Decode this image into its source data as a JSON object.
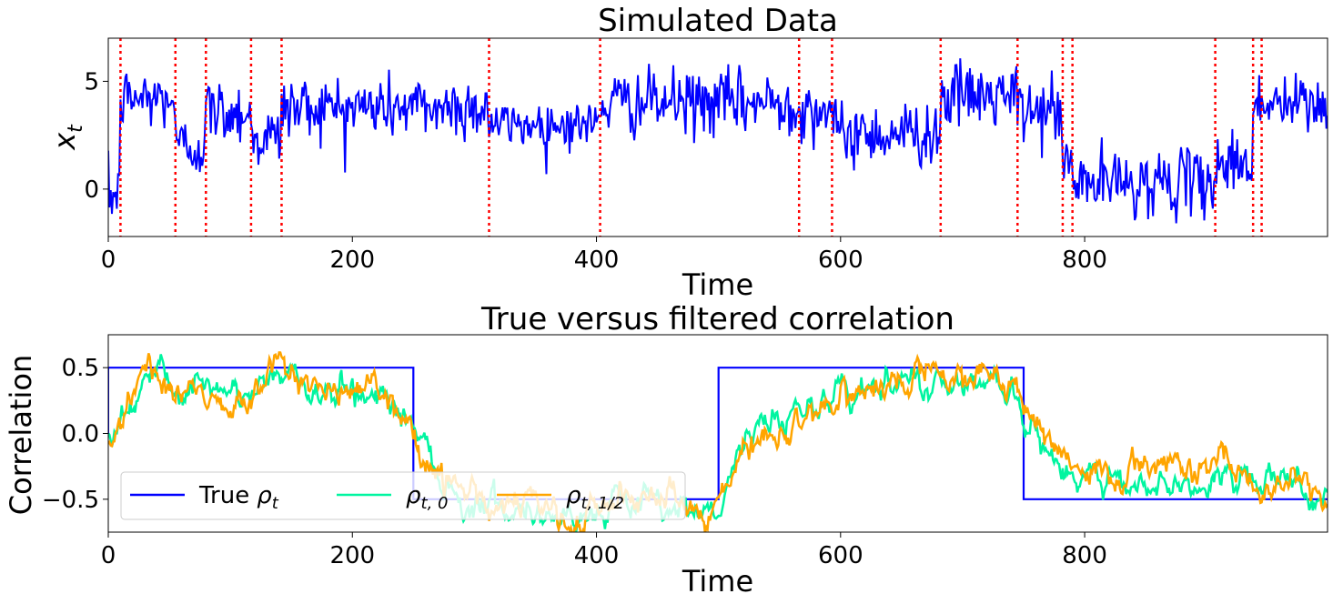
{
  "chart_data": [
    {
      "type": "line",
      "title": "Simulated Data",
      "xlabel": "Time",
      "ylabel": "x_t",
      "xlim": [
        0,
        999
      ],
      "ylim": [
        -2.2,
        7.0
      ],
      "xticks": [
        0,
        200,
        400,
        600,
        800
      ],
      "yticks": [
        0,
        5
      ],
      "series": [
        {
          "name": "x_t",
          "color": "#0000ff",
          "regime_means": [
            {
              "start": 0,
              "end": 10,
              "mean": -0.3
            },
            {
              "start": 10,
              "end": 55,
              "mean": 4.2
            },
            {
              "start": 55,
              "end": 80,
              "mean": 2.0
            },
            {
              "start": 80,
              "end": 117,
              "mean": 3.6
            },
            {
              "start": 117,
              "end": 142,
              "mean": 2.4
            },
            {
              "start": 142,
              "end": 312,
              "mean": 3.8
            },
            {
              "start": 312,
              "end": 403,
              "mean": 3.0
            },
            {
              "start": 403,
              "end": 566,
              "mean": 4.0
            },
            {
              "start": 566,
              "end": 593,
              "mean": 3.7
            },
            {
              "start": 593,
              "end": 682,
              "mean": 2.6
            },
            {
              "start": 682,
              "end": 745,
              "mean": 4.3
            },
            {
              "start": 745,
              "end": 782,
              "mean": 3.6
            },
            {
              "start": 782,
              "end": 790,
              "mean": 1.1
            },
            {
              "start": 790,
              "end": 907,
              "mean": 0.3
            },
            {
              "start": 907,
              "end": 938,
              "mean": 1.2
            },
            {
              "start": 938,
              "end": 945,
              "mean": 3.9
            },
            {
              "start": 945,
              "end": 999,
              "mean": 3.9
            }
          ]
        }
      ],
      "changepoints": [
        10,
        55,
        80,
        117,
        142,
        312,
        403,
        566,
        593,
        682,
        745,
        782,
        790,
        907,
        938,
        945
      ],
      "changepoint_color": "#ff0000"
    },
    {
      "type": "line",
      "title": "True versus filtered correlation",
      "xlabel": "Time",
      "ylabel": "Correlation",
      "xlim": [
        0,
        999
      ],
      "ylim": [
        -0.75,
        0.75
      ],
      "xticks": [
        0,
        200,
        400,
        600,
        800
      ],
      "yticks": [
        0.5,
        0.0,
        -0.5
      ],
      "ytick_labels": [
        "0.5",
        "0.0",
        "−0.5"
      ],
      "series": [
        {
          "name": "True ρt",
          "color": "#0000ff",
          "segments": [
            {
              "start": 0,
              "end": 250,
              "value": 0.5
            },
            {
              "start": 250,
              "end": 500,
              "value": -0.5
            },
            {
              "start": 500,
              "end": 750,
              "value": 0.5
            },
            {
              "start": 750,
              "end": 999,
              "value": -0.5
            }
          ]
        },
        {
          "name": "ρt,0",
          "color": "#00f5a0",
          "anchors": [
            [
              0,
              0.0
            ],
            [
              30,
              0.4
            ],
            [
              60,
              0.35
            ],
            [
              100,
              0.25
            ],
            [
              140,
              0.45
            ],
            [
              180,
              0.3
            ],
            [
              220,
              0.35
            ],
            [
              248,
              0.1
            ],
            [
              265,
              -0.2
            ],
            [
              290,
              -0.5
            ],
            [
              330,
              -0.55
            ],
            [
              380,
              -0.6
            ],
            [
              420,
              -0.55
            ],
            [
              470,
              -0.6
            ],
            [
              500,
              -0.55
            ],
            [
              520,
              -0.05
            ],
            [
              560,
              0.2
            ],
            [
              600,
              0.3
            ],
            [
              640,
              0.35
            ],
            [
              680,
              0.4
            ],
            [
              720,
              0.45
            ],
            [
              748,
              0.2
            ],
            [
              770,
              -0.25
            ],
            [
              820,
              -0.35
            ],
            [
              860,
              -0.35
            ],
            [
              900,
              -0.4
            ],
            [
              950,
              -0.35
            ],
            [
              999,
              -0.5
            ]
          ]
        },
        {
          "name": "ρt,1/2",
          "color": "#ffa500",
          "anchors": [
            [
              0,
              -0.05
            ],
            [
              30,
              0.45
            ],
            [
              60,
              0.35
            ],
            [
              100,
              0.2
            ],
            [
              140,
              0.5
            ],
            [
              180,
              0.3
            ],
            [
              220,
              0.35
            ],
            [
              248,
              0.05
            ],
            [
              265,
              -0.25
            ],
            [
              290,
              -0.55
            ],
            [
              330,
              -0.55
            ],
            [
              380,
              -0.65
            ],
            [
              420,
              -0.5
            ],
            [
              470,
              -0.55
            ],
            [
              500,
              -0.6
            ],
            [
              520,
              -0.1
            ],
            [
              560,
              0.1
            ],
            [
              600,
              0.25
            ],
            [
              640,
              0.35
            ],
            [
              680,
              0.45
            ],
            [
              720,
              0.55
            ],
            [
              748,
              0.25
            ],
            [
              770,
              -0.1
            ],
            [
              820,
              -0.35
            ],
            [
              860,
              -0.2
            ],
            [
              900,
              -0.3
            ],
            [
              950,
              -0.35
            ],
            [
              999,
              -0.45
            ]
          ]
        }
      ],
      "legend": {
        "placement": "lower-left",
        "entries": [
          "True ρt",
          "ρt,0",
          "ρt,1/2"
        ]
      }
    }
  ],
  "legend_labels": {
    "true_prefix": "True",
    "rho": "ρ",
    "sub_t": "t",
    "sub_t0": "t, 0",
    "sub_thalf": "t, 1/2"
  },
  "ylabel_top": {
    "var": "x",
    "sub": "t"
  }
}
